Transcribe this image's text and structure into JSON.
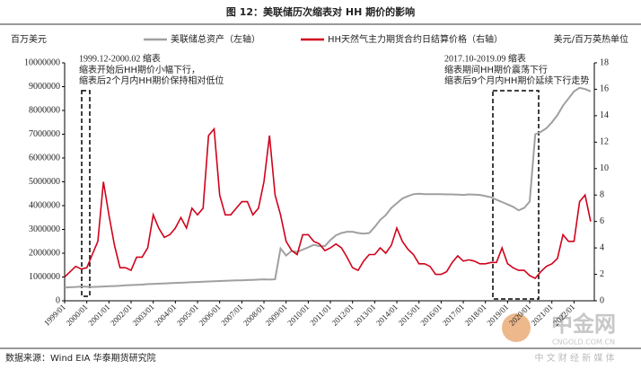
{
  "chart_data": {
    "type": "line",
    "title": "图 12：美联储历次缩表对 HH 期价的影响",
    "y_label": "百万美元",
    "y2_label": "美元/百万英热单位",
    "annotations": [
      "1999.12-2000.02 缩表",
      "缩表开始后HH期价小幅下行，",
      "缩表后2个月内HH期价保持相对低位",
      "2017.10-2019.09 缩表",
      "缩表期间HH期价震荡下行",
      "缩表后9个月内HH期价延续下行走势"
    ],
    "source": "数据来源：Wind EIA 华泰期货研究院",
    "watermark": [
      "中金网",
      "CNGOLD.COM.CN",
      "中 文 财 经 新 媒 体"
    ],
    "x": [
      "1999/01",
      "1999/04",
      "1999/07",
      "1999/10",
      "2000/01",
      "2000/04",
      "2000/07",
      "2000/10",
      "2001/01",
      "2001/04",
      "2001/07",
      "2001/10",
      "2002/01",
      "2002/04",
      "2002/07",
      "2002/10",
      "2003/01",
      "2003/04",
      "2003/07",
      "2003/10",
      "2004/01",
      "2004/04",
      "2004/07",
      "2004/10",
      "2005/01",
      "2005/04",
      "2005/07",
      "2005/10",
      "2006/01",
      "2006/04",
      "2006/07",
      "2006/10",
      "2007/01",
      "2007/04",
      "2007/07",
      "2007/10",
      "2008/01",
      "2008/04",
      "2008/07",
      "2008/10",
      "2009/01",
      "2009/04",
      "2009/07",
      "2009/10",
      "2010/01",
      "2010/04",
      "2010/07",
      "2010/10",
      "2011/01",
      "2011/04",
      "2011/07",
      "2011/10",
      "2012/01",
      "2012/04",
      "2012/07",
      "2012/10",
      "2013/01",
      "2013/04",
      "2013/07",
      "2013/10",
      "2014/01",
      "2014/04",
      "2014/07",
      "2014/10",
      "2015/01",
      "2015/04",
      "2015/07",
      "2015/10",
      "2016/01",
      "2016/04",
      "2016/07",
      "2016/10",
      "2017/01",
      "2017/04",
      "2017/07",
      "2017/10",
      "2018/01",
      "2018/04",
      "2018/07",
      "2018/10",
      "2019/01",
      "2019/04",
      "2019/07",
      "2019/10",
      "2020/01",
      "2020/04",
      "2020/07",
      "2020/10",
      "2021/01",
      "2021/04",
      "2021/07",
      "2021/10",
      "2022/01",
      "2022/04",
      "2022/07",
      "2022/10"
    ],
    "series": [
      {
        "name": "美联储总资产（左轴）",
        "color": "#a0a0a0",
        "values": [
          560000,
          570000,
          580000,
          600000,
          590000,
          580000,
          590000,
          600000,
          610000,
          620000,
          630000,
          650000,
          660000,
          670000,
          680000,
          700000,
          710000,
          720000,
          730000,
          740000,
          750000,
          760000,
          770000,
          780000,
          790000,
          800000,
          810000,
          820000,
          830000,
          840000,
          850000,
          860000,
          860000,
          870000,
          880000,
          890000,
          900000,
          890000,
          900000,
          2200000,
          1900000,
          2100000,
          2050000,
          2150000,
          2250000,
          2350000,
          2300000,
          2300000,
          2550000,
          2750000,
          2850000,
          2900000,
          2900000,
          2850000,
          2820000,
          2850000,
          3100000,
          3400000,
          3600000,
          3900000,
          4100000,
          4300000,
          4400000,
          4480000,
          4500000,
          4480000,
          4480000,
          4480000,
          4480000,
          4470000,
          4470000,
          4460000,
          4450000,
          4470000,
          4460000,
          4450000,
          4400000,
          4350000,
          4250000,
          4150000,
          4050000,
          3950000,
          3800000,
          3900000,
          4170000,
          7000000,
          7100000,
          7250000,
          7500000,
          7800000,
          8200000,
          8500000,
          8800000,
          8950000,
          8900000,
          8800000
        ]
      },
      {
        "name": "HH天然气主力期货合约日结算价格（右轴）",
        "color": "#d0021b",
        "axis": "y2",
        "values": [
          1.8,
          2.2,
          2.6,
          2.4,
          2.5,
          3.5,
          4.5,
          9.0,
          6.5,
          4.2,
          2.5,
          2.5,
          2.3,
          3.3,
          3.3,
          4.0,
          6.5,
          5.5,
          4.8,
          5.0,
          5.5,
          6.3,
          5.5,
          7.0,
          6.5,
          7.0,
          12.5,
          13.0,
          8.0,
          6.5,
          6.5,
          7.0,
          7.5,
          7.5,
          6.5,
          7.0,
          9.0,
          12.5,
          8.0,
          6.5,
          4.5,
          3.8,
          3.5,
          5.0,
          5.0,
          4.5,
          4.3,
          3.8,
          4.0,
          4.3,
          4.0,
          3.3,
          2.5,
          2.3,
          3.0,
          3.5,
          3.5,
          4.0,
          3.6,
          4.2,
          5.5,
          4.5,
          3.9,
          3.5,
          2.8,
          2.8,
          2.6,
          2.0,
          2.0,
          2.2,
          2.9,
          3.4,
          3.0,
          3.1,
          3.0,
          2.8,
          2.8,
          2.9,
          2.9,
          4.0,
          2.8,
          2.5,
          2.3,
          2.3,
          1.9,
          1.7,
          2.2,
          2.6,
          2.8,
          3.2,
          5.0,
          4.5,
          4.5,
          7.5,
          8.0,
          6.0
        ]
      }
    ],
    "xlim": [
      "1999/01",
      "2022/12"
    ],
    "xticks": [
      "1999/01",
      "2000/01",
      "2001/01",
      "2002/01",
      "2003/01",
      "2004/01",
      "2005/01",
      "2006/01",
      "2007/01",
      "2008/01",
      "2009/01",
      "2010/01",
      "2011/01",
      "2012/01",
      "2013/01",
      "2014/01",
      "2015/01",
      "2016/01",
      "2017/01",
      "2018/01",
      "2019/01",
      "2020/01",
      "2021/01",
      "2022/01"
    ],
    "ylim": [
      0,
      10000000
    ],
    "yticks": [
      0,
      1000000,
      2000000,
      3000000,
      4000000,
      5000000,
      6000000,
      7000000,
      8000000,
      9000000,
      10000000
    ],
    "y2lim": [
      0,
      18
    ],
    "y2ticks": [
      0,
      2,
      4,
      6,
      8,
      10,
      12,
      14,
      16,
      18
    ],
    "grid": false
  }
}
